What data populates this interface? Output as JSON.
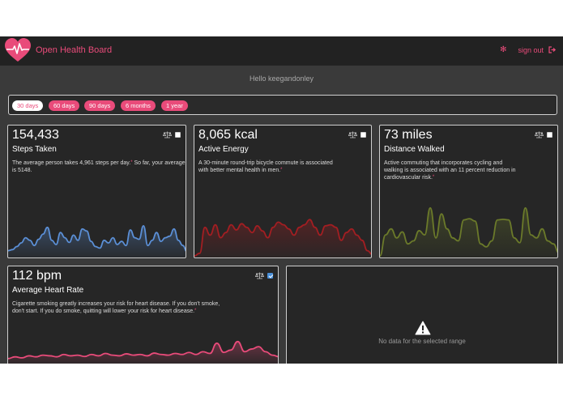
{
  "header": {
    "title": "Open Health Board",
    "signout_label": "sign out"
  },
  "greeting": "Hello keegandonley",
  "ranges": [
    {
      "label": "30 days",
      "active": true
    },
    {
      "label": "60 days",
      "active": false
    },
    {
      "label": "90 days",
      "active": false
    },
    {
      "label": "6 months",
      "active": false
    },
    {
      "label": "1 year",
      "active": false
    }
  ],
  "cards": {
    "steps": {
      "value": "154,433",
      "label": "Steps Taken",
      "desc_lines": [
        "The average person takes 4,961 steps per day.",
        "So far, your average is 5148."
      ],
      "ref": "*",
      "color": "#5b8fd6",
      "checked": false,
      "series": [
        0.1,
        0.12,
        0.18,
        0.25,
        0.35,
        0.3,
        0.2,
        0.32,
        0.42,
        0.55,
        0.3,
        0.22,
        0.45,
        0.35,
        0.26,
        0.4,
        0.3,
        0.52,
        0.48,
        0.28,
        0.18,
        0.15,
        0.3,
        0.25,
        0.35,
        0.22,
        0.28,
        0.2,
        0.5,
        0.35,
        0.32,
        0.58,
        0.2,
        0.3,
        0.45,
        0.28,
        0.35,
        0.38,
        0.52,
        0.3,
        0.2,
        0.08
      ]
    },
    "energy": {
      "value": "8,065 kcal",
      "label": "Active Energy",
      "desc_lines": [
        "A 30-minute round-trip bicycle commute is associated",
        "with better mental health in men."
      ],
      "ref": "*",
      "color": "#a31e22",
      "checked": false,
      "series": [
        0.0,
        0.05,
        0.55,
        0.4,
        0.6,
        0.35,
        0.45,
        0.6,
        0.5,
        0.62,
        0.55,
        0.45,
        0.58,
        0.48,
        0.35,
        0.55,
        0.65,
        0.6,
        0.52,
        0.4,
        0.55,
        0.6,
        0.7,
        0.55,
        0.4,
        0.58,
        0.6,
        0.55,
        0.3,
        0.45,
        0.52,
        0.4,
        0.3,
        0.1,
        0.02
      ]
    },
    "distance": {
      "value": "73 miles",
      "label": "Distance Walked",
      "desc_lines": [
        "Active commuting that incorporates cycling and",
        "walking is associated with an 11 percent reduction in",
        "cardiovascular risk."
      ],
      "ref": "*",
      "color": "#6b7a2a",
      "checked": false,
      "series": [
        0.0,
        0.35,
        0.45,
        0.3,
        0.4,
        0.2,
        0.25,
        0.42,
        0.35,
        0.8,
        0.3,
        0.7,
        0.45,
        0.3,
        0.25,
        0.6,
        0.62,
        0.58,
        0.2,
        0.15,
        0.25,
        0.6,
        0.61,
        0.6,
        0.3,
        0.22,
        0.8,
        0.35,
        0.3,
        0.45,
        0.25,
        0.2,
        0.05
      ]
    },
    "heart": {
      "value": "112 bpm",
      "label": "Average Heart Rate",
      "desc_lines": [
        "Cigarette smoking greatly increases your risk for heart disease. If you don't smoke,",
        "don't start. If you do smoke, quitting will lower your risk for heart disease."
      ],
      "ref": "*",
      "color": "#e94b7a",
      "checked": true,
      "series": [
        0.1,
        0.15,
        0.12,
        0.18,
        0.15,
        0.2,
        0.18,
        0.15,
        0.22,
        0.18,
        0.2,
        0.16,
        0.22,
        0.18,
        0.25,
        0.2,
        0.18,
        0.24,
        0.2,
        0.22,
        0.18,
        0.26,
        0.22,
        0.2,
        0.25,
        0.22,
        0.28,
        0.22,
        0.3,
        0.25,
        0.55,
        0.28,
        0.35,
        0.6,
        0.3,
        0.38,
        0.45,
        0.3,
        0.2,
        0.15
      ]
    },
    "empty": {
      "message": "No data for the selected range"
    }
  }
}
